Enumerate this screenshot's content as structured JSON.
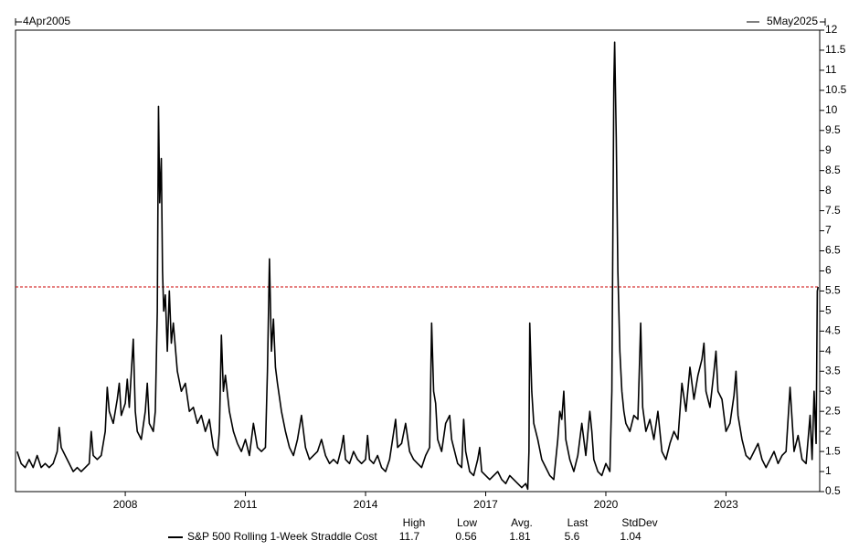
{
  "chart_data": {
    "type": "line",
    "start_label": "4Apr2005",
    "end_label": "5May2025",
    "xlim": [
      2005.26,
      2025.34
    ],
    "xticks": [
      2008,
      2011,
      2014,
      2017,
      2020,
      2023
    ],
    "ylim": [
      0.5,
      12
    ],
    "yticks": [
      0.5,
      1,
      1.5,
      2,
      2.5,
      3,
      3.5,
      4,
      4.5,
      5,
      5.5,
      6,
      6.5,
      7,
      7.5,
      8,
      8.5,
      9,
      9.5,
      10,
      10.5,
      11,
      11.5,
      12
    ],
    "reference_line": {
      "color": "#cc0000",
      "dashed": true
    },
    "x": [
      2005.3,
      2005.4,
      2005.5,
      2005.6,
      2005.7,
      2005.8,
      2005.9,
      2006.0,
      2006.1,
      2006.2,
      2006.3,
      2006.35,
      2006.4,
      2006.5,
      2006.6,
      2006.7,
      2006.8,
      2006.9,
      2007.0,
      2007.1,
      2007.15,
      2007.2,
      2007.3,
      2007.4,
      2007.5,
      2007.55,
      2007.6,
      2007.7,
      2007.8,
      2007.85,
      2007.9,
      2008.0,
      2008.05,
      2008.1,
      2008.2,
      2008.25,
      2008.3,
      2008.4,
      2008.5,
      2008.55,
      2008.6,
      2008.7,
      2008.75,
      2008.8,
      2008.83,
      2008.86,
      2008.9,
      2008.93,
      2008.96,
      2009.0,
      2009.05,
      2009.1,
      2009.15,
      2009.2,
      2009.3,
      2009.4,
      2009.5,
      2009.6,
      2009.7,
      2009.8,
      2009.9,
      2010.0,
      2010.1,
      2010.2,
      2010.3,
      2010.35,
      2010.4,
      2010.45,
      2010.5,
      2010.6,
      2010.7,
      2010.8,
      2010.9,
      2011.0,
      2011.1,
      2011.2,
      2011.3,
      2011.4,
      2011.5,
      2011.55,
      2011.6,
      2011.65,
      2011.7,
      2011.75,
      2011.8,
      2011.9,
      2012.0,
      2012.1,
      2012.2,
      2012.3,
      2012.4,
      2012.45,
      2012.5,
      2012.6,
      2012.7,
      2012.8,
      2012.9,
      2013.0,
      2013.1,
      2013.2,
      2013.3,
      2013.4,
      2013.45,
      2013.5,
      2013.6,
      2013.7,
      2013.8,
      2013.9,
      2014.0,
      2014.05,
      2014.1,
      2014.2,
      2014.3,
      2014.4,
      2014.5,
      2014.6,
      2014.75,
      2014.8,
      2014.9,
      2015.0,
      2015.1,
      2015.2,
      2015.3,
      2015.4,
      2015.5,
      2015.6,
      2015.65,
      2015.7,
      2015.75,
      2015.8,
      2015.9,
      2016.0,
      2016.1,
      2016.15,
      2016.3,
      2016.4,
      2016.45,
      2016.5,
      2016.6,
      2016.7,
      2016.8,
      2016.85,
      2016.9,
      2017.0,
      2017.1,
      2017.2,
      2017.3,
      2017.4,
      2017.5,
      2017.6,
      2017.7,
      2017.8,
      2017.9,
      2018.0,
      2018.05,
      2018.08,
      2018.1,
      2018.15,
      2018.2,
      2018.3,
      2018.4,
      2018.5,
      2018.6,
      2018.7,
      2018.8,
      2018.85,
      2018.9,
      2018.95,
      2019.0,
      2019.1,
      2019.2,
      2019.3,
      2019.4,
      2019.5,
      2019.6,
      2019.65,
      2019.7,
      2019.8,
      2019.9,
      2020.0,
      2020.1,
      2020.15,
      2020.2,
      2020.22,
      2020.26,
      2020.3,
      2020.35,
      2020.4,
      2020.45,
      2020.5,
      2020.6,
      2020.7,
      2020.8,
      2020.87,
      2020.92,
      2021.0,
      2021.1,
      2021.2,
      2021.3,
      2021.4,
      2021.5,
      2021.6,
      2021.7,
      2021.8,
      2021.9,
      2022.0,
      2022.1,
      2022.2,
      2022.3,
      2022.4,
      2022.45,
      2022.5,
      2022.6,
      2022.7,
      2022.75,
      2022.8,
      2022.9,
      2023.0,
      2023.1,
      2023.2,
      2023.25,
      2023.3,
      2023.4,
      2023.5,
      2023.6,
      2023.7,
      2023.8,
      2023.9,
      2024.0,
      2024.1,
      2024.2,
      2024.3,
      2024.4,
      2024.5,
      2024.6,
      2024.7,
      2024.8,
      2024.9,
      2025.0,
      2025.1,
      2025.15,
      2025.2,
      2025.25,
      2025.28,
      2025.3
    ],
    "series": [
      {
        "name": "S&P 500 Rolling 1-Week Straddle Cost",
        "color": "#000000",
        "values": [
          1.5,
          1.2,
          1.1,
          1.3,
          1.1,
          1.4,
          1.1,
          1.2,
          1.1,
          1.2,
          1.5,
          2.1,
          1.6,
          1.4,
          1.2,
          1.0,
          1.1,
          1.0,
          1.1,
          1.2,
          2.0,
          1.4,
          1.3,
          1.4,
          2.0,
          3.1,
          2.5,
          2.2,
          2.8,
          3.2,
          2.4,
          2.7,
          3.3,
          2.6,
          4.3,
          2.5,
          2.0,
          1.8,
          2.5,
          3.2,
          2.2,
          2.0,
          2.5,
          5.0,
          10.1,
          7.7,
          8.8,
          6.0,
          5.0,
          5.4,
          4.0,
          5.5,
          4.2,
          4.7,
          3.5,
          3.0,
          3.2,
          2.5,
          2.6,
          2.2,
          2.4,
          2.0,
          2.3,
          1.6,
          1.4,
          2.0,
          4.4,
          3.0,
          3.4,
          2.5,
          2.0,
          1.7,
          1.5,
          1.8,
          1.4,
          2.2,
          1.6,
          1.5,
          1.6,
          3.5,
          6.3,
          4.0,
          4.8,
          3.6,
          3.2,
          2.5,
          2.0,
          1.6,
          1.4,
          1.8,
          2.4,
          2.0,
          1.6,
          1.3,
          1.4,
          1.5,
          1.8,
          1.4,
          1.2,
          1.3,
          1.2,
          1.6,
          1.9,
          1.3,
          1.2,
          1.5,
          1.3,
          1.2,
          1.3,
          1.9,
          1.3,
          1.2,
          1.4,
          1.1,
          1.0,
          1.3,
          2.3,
          1.6,
          1.7,
          2.2,
          1.5,
          1.3,
          1.2,
          1.1,
          1.4,
          1.6,
          4.7,
          3.0,
          2.7,
          1.8,
          1.5,
          2.2,
          2.4,
          1.8,
          1.2,
          1.1,
          2.3,
          1.5,
          1.0,
          0.9,
          1.3,
          1.6,
          1.0,
          0.9,
          0.8,
          0.9,
          1.0,
          0.8,
          0.7,
          0.9,
          0.8,
          0.7,
          0.6,
          0.7,
          0.56,
          1.5,
          4.7,
          3.0,
          2.2,
          1.8,
          1.3,
          1.1,
          0.9,
          0.8,
          1.8,
          2.5,
          2.3,
          3.0,
          1.8,
          1.3,
          1.0,
          1.4,
          2.2,
          1.4,
          2.5,
          2.0,
          1.3,
          1.0,
          0.9,
          1.2,
          1.0,
          3.0,
          10.7,
          11.7,
          9.3,
          6.0,
          4.0,
          3.0,
          2.5,
          2.2,
          2.0,
          2.4,
          2.3,
          4.7,
          2.6,
          2.0,
          2.3,
          1.8,
          2.5,
          1.5,
          1.3,
          1.7,
          2.0,
          1.8,
          3.2,
          2.5,
          3.6,
          2.8,
          3.4,
          3.8,
          4.2,
          3.0,
          2.6,
          3.5,
          4.0,
          3.0,
          2.8,
          2.0,
          2.2,
          2.9,
          3.5,
          2.4,
          1.8,
          1.4,
          1.3,
          1.5,
          1.7,
          1.3,
          1.1,
          1.3,
          1.5,
          1.2,
          1.4,
          1.5,
          3.1,
          1.5,
          1.9,
          1.3,
          1.2,
          2.4,
          1.3,
          3.0,
          1.7,
          5.5,
          5.6
        ]
      }
    ],
    "stats": [
      {
        "label": "High",
        "value": 11.7
      },
      {
        "label": "Low",
        "value": 0.56
      },
      {
        "label": "Avg.",
        "value": 1.81
      },
      {
        "label": "Last",
        "value": 5.6
      },
      {
        "label": "StdDev",
        "value": 1.04
      }
    ]
  }
}
